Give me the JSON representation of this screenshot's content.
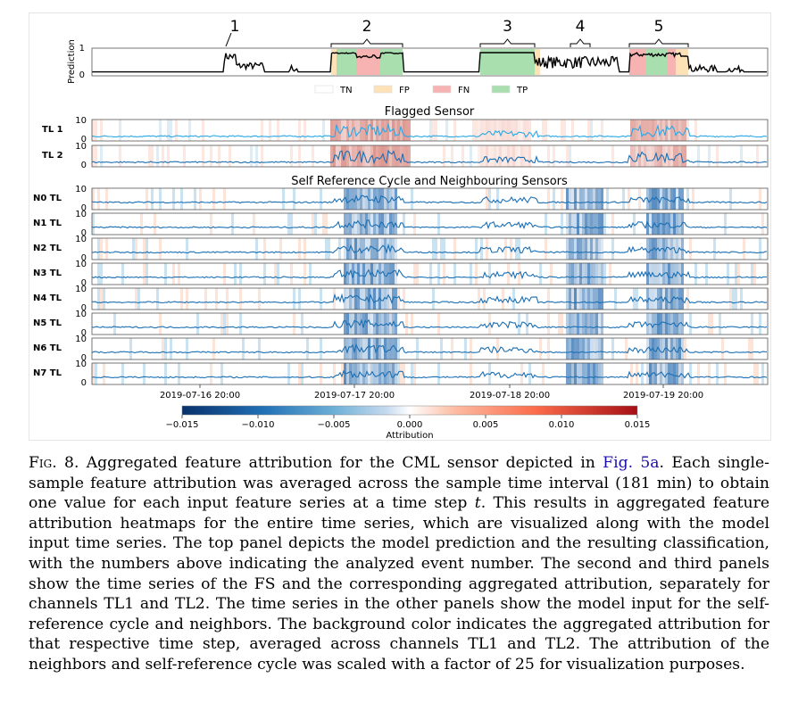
{
  "figure": {
    "prediction_panel": {
      "ylabel": "Prediction",
      "yticks": [
        "1",
        "0"
      ],
      "event_numbers": [
        "1",
        "2",
        "3",
        "4",
        "5"
      ]
    },
    "classification_legend": [
      {
        "label": "TN",
        "color": "#ffffff"
      },
      {
        "label": "FP",
        "color": "#fde2b8"
      },
      {
        "label": "FN",
        "color": "#f7b2b2"
      },
      {
        "label": "TP",
        "color": "#a9dfae"
      }
    ],
    "section_titles": {
      "flagged": "Flagged Sensor",
      "self_reference": "Self Reference Cycle and Neighbouring Sensors"
    },
    "rows": [
      {
        "label": "TL 1",
        "ytop": "10",
        "ybottom": "0"
      },
      {
        "label": "TL 2",
        "ytop": "10",
        "ybottom": "0"
      },
      {
        "label": "N0 TL",
        "ytop": "10",
        "ybottom": "0"
      },
      {
        "label": "N1 TL",
        "ytop": "10",
        "ybottom": "0"
      },
      {
        "label": "N2 TL",
        "ytop": "10",
        "ybottom": "0"
      },
      {
        "label": "N3 TL",
        "ytop": "10",
        "ybottom": "0"
      },
      {
        "label": "N4 TL",
        "ytop": "10",
        "ybottom": "0"
      },
      {
        "label": "N5 TL",
        "ytop": "10",
        "ybottom": "0"
      },
      {
        "label": "N6 TL",
        "ytop": "10",
        "ybottom": "0"
      },
      {
        "label": "N7 TL",
        "ytop": "10",
        "ybottom": "0"
      }
    ],
    "x_ticks": [
      "2019-07-16 20:00",
      "2019-07-17 20:00",
      "2019-07-18 20:00",
      "2019-07-19 20:00"
    ],
    "colorbar": {
      "ticks": [
        "−0.015",
        "−0.010",
        "−0.005",
        "0.000",
        "0.005",
        "0.010",
        "0.015"
      ],
      "label": "Attribution",
      "range": [
        -0.015,
        0.015
      ],
      "colors": [
        "#08306b",
        "#2171b5",
        "#6baed6",
        "#c6dbef",
        "#ffffff",
        "#fcbba1",
        "#fb6a4a",
        "#a50f15"
      ]
    }
  },
  "caption": {
    "label": "Fig. 8.",
    "text_1": " Aggregated feature attribution for the CML sensor depicted in ",
    "ref": "Fig. 5a",
    "text_2": ". Each single-sample feature attribution was averaged across the sample time interval (181 min) to obtain one value for each input feature series at a time step ",
    "var": "t",
    "text_3": ". This results in aggregated feature attribution heatmaps for the entire time series, which are visualized along with the model input time series. The top panel depicts the model prediction and the resulting classification, with the numbers above indicating the analyzed event number. The second and third panels show the time series of the FS and the corresponding aggregated attribution, separately for channels TL1 and TL2. The time series in the other panels show the model input for the self-reference cycle and neighbors. The background color indicates the aggregated attribution for that respective time step, averaged across channels TL1 and TL2. The attribution of the neighbors and self-reference cycle was scaled with a factor of 25 for visualization purposes."
  }
}
